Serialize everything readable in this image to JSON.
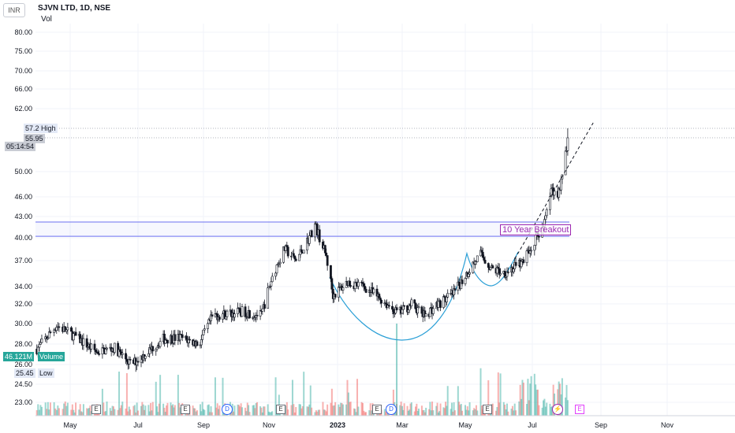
{
  "header": {
    "currency": "INR",
    "title": "SJVN LTD, 1D, NSE",
    "volume_label": "Vol"
  },
  "price_axis": {
    "ticks": [
      "80.00",
      "75.00",
      "70.00",
      "66.00",
      "62.00",
      "50.00",
      "46.00",
      "43.00",
      "40.00",
      "37.00",
      "34.00",
      "32.00",
      "30.00",
      "28.00",
      "26.00",
      "24.50",
      "23.00"
    ],
    "high_value": "57.20",
    "high_label": "High",
    "current_price": "55.95",
    "countdown": "05:14:54",
    "volume_value": "46.121M",
    "volume_tag": "Volume",
    "low_value": "25.45",
    "low_label": "Low"
  },
  "time_axis": [
    "May",
    "Jul",
    "Sep",
    "Nov",
    "2023",
    "Mar",
    "May",
    "Jul",
    "Sep",
    "Nov"
  ],
  "annotations": {
    "breakout_text": "10 Year Breakout"
  },
  "events": {
    "earnings_label": "E",
    "dividend_label": "D",
    "split_label": "⚡"
  },
  "colors": {
    "up": "#26a69a",
    "down": "#ef5350",
    "candle_body": "#131722",
    "zone": "#6a6ff0",
    "cup": "#2a9fd6",
    "label": "#9c27b0",
    "volume_tag": "#26a69a"
  },
  "chart_data": {
    "type": "candlestick",
    "title": "SJVN LTD, 1D, NSE",
    "x_range": [
      "2022-04",
      "2023-11"
    ],
    "y_scale": "log",
    "ylim": [
      22.5,
      82
    ],
    "breakout_zone": [
      40.2,
      42.2
    ],
    "trendline": [
      [
        "2023-06-15",
        37.2
      ],
      [
        "2023-08-25",
        58.5
      ]
    ],
    "price_path": [
      [
        "2022-04-04",
        27.5
      ],
      [
        "2022-04-20",
        29.8
      ],
      [
        "2022-05-10",
        28.4
      ],
      [
        "2022-05-25",
        27.2
      ],
      [
        "2022-06-10",
        27.6
      ],
      [
        "2022-06-25",
        26.0
      ],
      [
        "2022-07-10",
        27.2
      ],
      [
        "2022-07-25",
        28.5
      ],
      [
        "2022-08-10",
        28.6
      ],
      [
        "2022-08-28",
        28.0
      ],
      [
        "2022-09-10",
        30.8
      ],
      [
        "2022-09-25",
        31.0
      ],
      [
        "2022-10-10",
        31.2
      ],
      [
        "2022-10-25",
        30.8
      ],
      [
        "2022-11-05",
        35.5
      ],
      [
        "2022-11-15",
        38.5
      ],
      [
        "2022-11-25",
        37.0
      ],
      [
        "2022-12-05",
        39.5
      ],
      [
        "2022-12-12",
        41.8
      ],
      [
        "2022-12-22",
        37.5
      ],
      [
        "2022-12-28",
        33.0
      ],
      [
        "2023-01-10",
        34.5
      ],
      [
        "2023-01-25",
        34.0
      ],
      [
        "2023-02-10",
        32.5
      ],
      [
        "2023-02-25",
        31.0
      ],
      [
        "2023-03-10",
        32.0
      ],
      [
        "2023-03-22",
        30.8
      ],
      [
        "2023-04-05",
        32.0
      ],
      [
        "2023-04-20",
        33.2
      ],
      [
        "2023-05-05",
        36.0
      ],
      [
        "2023-05-15",
        37.8
      ],
      [
        "2023-05-25",
        36.0
      ],
      [
        "2023-06-05",
        35.6
      ],
      [
        "2023-06-20",
        36.5
      ],
      [
        "2023-06-30",
        38.5
      ],
      [
        "2023-07-06",
        40.5
      ],
      [
        "2023-07-11",
        41.5
      ],
      [
        "2023-07-18",
        47.0
      ],
      [
        "2023-07-24",
        46.5
      ],
      [
        "2023-07-28",
        49.0
      ],
      [
        "2023-08-02",
        55.95
      ]
    ],
    "high": 57.2,
    "low": 25.45,
    "last_close": 55.95,
    "last_volume": "46.121M",
    "annotation": "10 Year Breakout"
  }
}
